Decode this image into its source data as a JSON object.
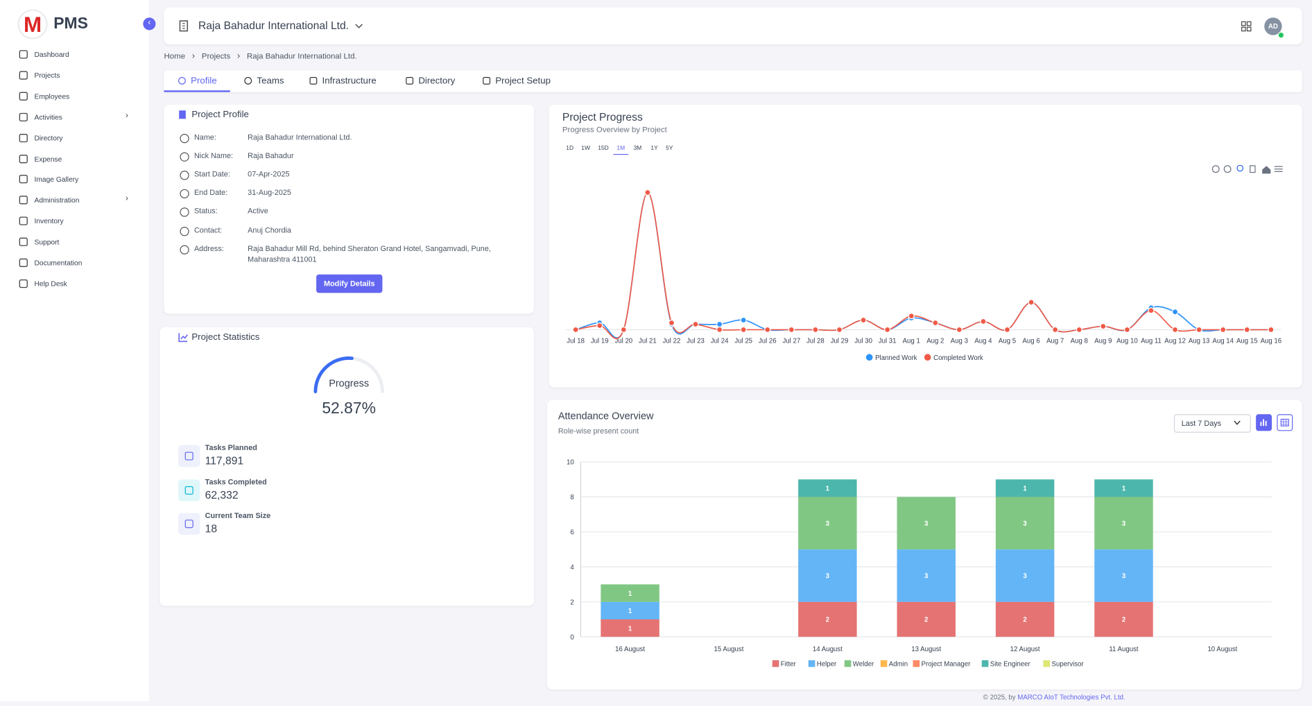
{
  "sidebar": {
    "logo": "PMS",
    "items": [
      {
        "label": "Dashboard",
        "has_submenu": false
      },
      {
        "label": "Projects",
        "has_submenu": false
      },
      {
        "label": "Employees",
        "has_submenu": false
      },
      {
        "label": "Activities",
        "has_submenu": true
      },
      {
        "label": "Directory",
        "has_submenu": false
      },
      {
        "label": "Expense",
        "has_submenu": false
      },
      {
        "label": "Image Gallery",
        "has_submenu": false
      },
      {
        "label": "Administration",
        "has_submenu": true
      },
      {
        "label": "Inventory",
        "has_submenu": false
      },
      {
        "label": "Support",
        "has_submenu": false
      },
      {
        "label": "Documentation",
        "has_submenu": false
      },
      {
        "label": "Help Desk",
        "has_submenu": false
      }
    ]
  },
  "header": {
    "company": "Raja Bahadur International Ltd.",
    "avatar": "AD"
  },
  "breadcrumb": [
    "Home",
    "Projects",
    "Raja Bahadur International Ltd."
  ],
  "tabs": [
    "Profile",
    "Teams",
    "Infrastructure",
    "Directory",
    "Project Setup"
  ],
  "active_tab": "Profile",
  "profile": {
    "title": "Project Profile",
    "fields": [
      {
        "label": "Name:",
        "value": "Raja Bahadur International Ltd."
      },
      {
        "label": "Nick Name:",
        "value": "Raja Bahadur"
      },
      {
        "label": "Start Date:",
        "value": "07-Apr-2025"
      },
      {
        "label": "End Date:",
        "value": "31-Aug-2025"
      },
      {
        "label": "Status:",
        "value": "Active"
      },
      {
        "label": "Contact:",
        "value": "Anuj Chordia"
      },
      {
        "label": "Address:",
        "value": "Raja Bahadur Mill Rd, behind Sheraton Grand Hotel, Sangamvadi, Pune, Maharashtra 411001"
      }
    ],
    "button": "Modify Details"
  },
  "statistics": {
    "title": "Project Statistics",
    "gauge_label": "Progress",
    "progress": {
      "value": 52.87,
      "label": "52.87%"
    },
    "items": [
      {
        "label": "Tasks Planned",
        "value": "117,891"
      },
      {
        "label": "Tasks Completed",
        "value": "62,332"
      },
      {
        "label": "Current Team Size",
        "value": "18"
      }
    ]
  },
  "progress_chart": {
    "type": "line",
    "title": "Project Progress",
    "subtitle": "Progress Overview by Project",
    "ranges": [
      "1D",
      "1W",
      "15D",
      "1M",
      "3M",
      "1Y",
      "5Y"
    ],
    "selected_range": "1M",
    "categories": [
      "Jul 18",
      "Jul 19",
      "Jul 20",
      "Jul 21",
      "Jul 22",
      "Jul 23",
      "Jul 24",
      "Jul 25",
      "Jul 26",
      "Jul 27",
      "Jul 28",
      "Jul 29",
      "Jul 30",
      "Jul 31",
      "Aug 1",
      "Aug 2",
      "Aug 3",
      "Aug 4",
      "Aug 5",
      "Aug 6",
      "Aug 7",
      "Aug 8",
      "Aug 9",
      "Aug 10",
      "Aug 11",
      "Aug 12",
      "Aug 13",
      "Aug 14",
      "Aug 15",
      "Aug 16"
    ],
    "series": [
      {
        "name": "Planned Work",
        "color": "#2e93fa",
        "values": [
          0,
          5,
          0,
          100,
          4,
          4,
          4,
          7,
          0,
          0,
          0,
          0,
          7,
          0,
          8.5,
          5,
          0,
          6,
          0,
          20,
          0,
          0,
          2.5,
          0,
          16,
          13,
          0,
          0,
          0,
          0
        ]
      },
      {
        "name": "Completed Work",
        "color": "#ef5a48",
        "values": [
          0,
          3,
          0,
          100,
          5,
          4,
          0,
          0,
          0,
          0,
          0,
          0,
          7,
          0,
          10,
          5,
          0,
          6,
          0,
          20,
          0,
          0,
          2.5,
          0,
          14,
          0,
          0,
          0,
          0,
          0
        ]
      }
    ],
    "ylim": [
      0,
      100
    ]
  },
  "attendance_chart": {
    "type": "stacked-bar",
    "title": "Attendance Overview",
    "subtitle": "Role-wise present count",
    "period": "Last 7 Days",
    "categories": [
      "16 August",
      "15 August",
      "14 August",
      "13 August",
      "12 August",
      "11 August",
      "10 August"
    ],
    "series": [
      {
        "name": "Fitter",
        "color": "#e57373",
        "values": [
          1,
          0,
          2,
          2,
          2,
          2,
          0
        ]
      },
      {
        "name": "Helper",
        "color": "#64b5f6",
        "values": [
          1,
          0,
          3,
          3,
          3,
          3,
          0
        ]
      },
      {
        "name": "Welder",
        "color": "#81c784",
        "values": [
          1,
          0,
          3,
          3,
          3,
          3,
          0
        ]
      },
      {
        "name": "Admin",
        "color": "#ffb74d",
        "values": [
          0,
          0,
          0,
          0,
          0,
          0,
          0
        ]
      },
      {
        "name": "Project Manager",
        "color": "#ff8a65",
        "values": [
          0,
          0,
          0,
          0,
          0,
          0,
          0
        ]
      },
      {
        "name": "Site Engineer",
        "color": "#4db6ac",
        "values": [
          0,
          0,
          1,
          0,
          1,
          1,
          0
        ]
      },
      {
        "name": "Supervisor",
        "color": "#dce775",
        "values": [
          0,
          0,
          0,
          0,
          0,
          0,
          0
        ]
      }
    ],
    "ylim": [
      0,
      10
    ],
    "yticks": [
      0,
      2,
      4,
      6,
      8,
      10
    ],
    "grid": true
  },
  "footer": {
    "text": "© 2025, by",
    "link": "MARCO AIoT Technologies Pvt. Ltd."
  }
}
